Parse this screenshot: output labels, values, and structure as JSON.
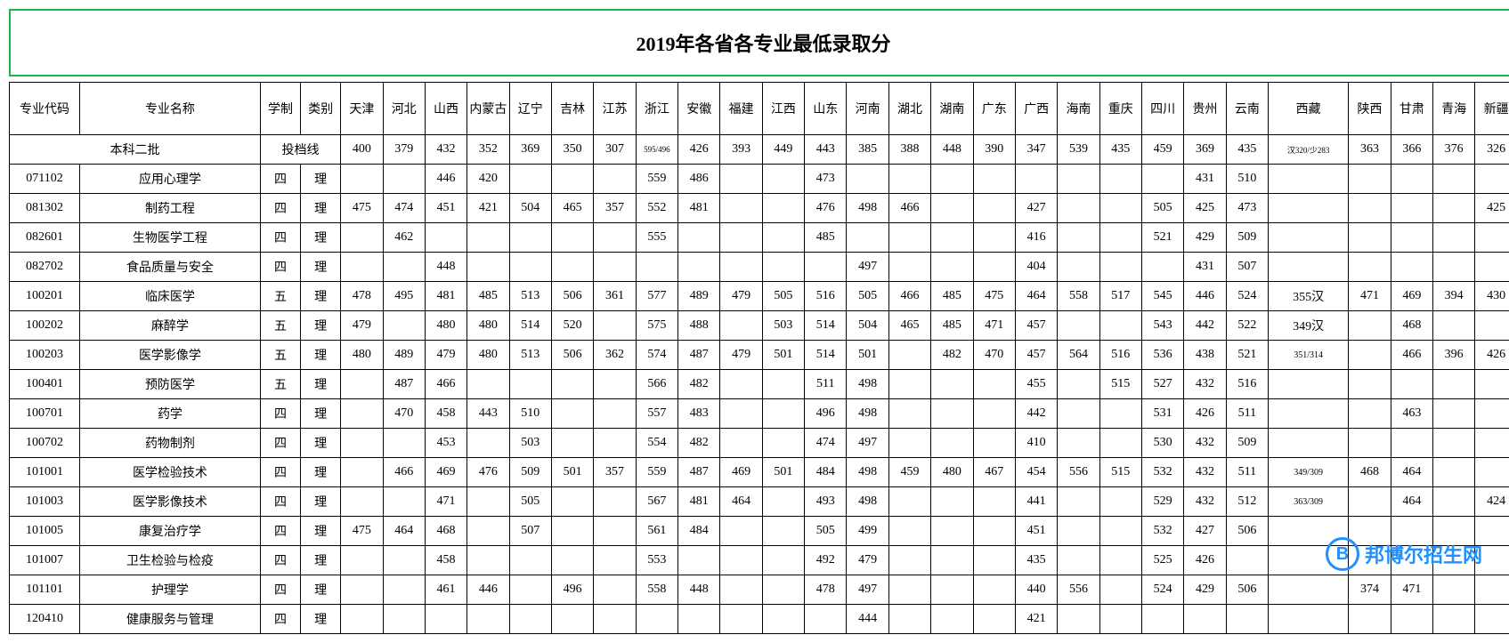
{
  "title": "2019年各省各专业最低录取分",
  "headers": {
    "code": "专业代码",
    "name": "专业名称",
    "duration": "学制",
    "category": "类别",
    "provinces": [
      "天津",
      "河北",
      "山西",
      "内蒙古",
      "辽宁",
      "吉林",
      "江苏",
      "浙江",
      "安徽",
      "福建",
      "江西",
      "山东",
      "河南",
      "湖北",
      "湖南",
      "广东",
      "广西",
      "海南",
      "重庆",
      "四川",
      "贵州",
      "云南",
      "西藏",
      "陕西",
      "甘肃",
      "青海",
      "新疆"
    ]
  },
  "cutoff": {
    "label": "本科二批",
    "sublabel": "投档线",
    "values": [
      "400",
      "379",
      "432",
      "352",
      "369",
      "350",
      "307",
      "595/496",
      "426",
      "393",
      "449",
      "443",
      "385",
      "388",
      "448",
      "390",
      "347",
      "539",
      "435",
      "459",
      "369",
      "435",
      "汉320/少283",
      "363",
      "366",
      "376",
      "326"
    ]
  },
  "rows": [
    {
      "code": "071102",
      "name": "应用心理学",
      "dur": "四",
      "cat": "理",
      "v": [
        "",
        "",
        "446",
        "420",
        "",
        "",
        "",
        "559",
        "486",
        "",
        "",
        "473",
        "",
        "",
        "",
        "",
        "",
        "",
        "",
        "",
        "431",
        "510",
        "",
        "",
        "",
        "",
        ""
      ]
    },
    {
      "code": "081302",
      "name": "制药工程",
      "dur": "四",
      "cat": "理",
      "v": [
        "475",
        "474",
        "451",
        "421",
        "504",
        "465",
        "357",
        "552",
        "481",
        "",
        "",
        "476",
        "498",
        "466",
        "",
        "",
        "427",
        "",
        "",
        "505",
        "425",
        "473",
        "",
        "",
        "",
        "",
        "425"
      ]
    },
    {
      "code": "082601",
      "name": "生物医学工程",
      "dur": "四",
      "cat": "理",
      "v": [
        "",
        "462",
        "",
        "",
        "",
        "",
        "",
        "555",
        "",
        "",
        "",
        "485",
        "",
        "",
        "",
        "",
        "416",
        "",
        "",
        "521",
        "429",
        "509",
        "",
        "",
        "",
        "",
        ""
      ]
    },
    {
      "code": "082702",
      "name": "食品质量与安全",
      "dur": "四",
      "cat": "理",
      "v": [
        "",
        "",
        "448",
        "",
        "",
        "",
        "",
        "",
        "",
        "",
        "",
        "",
        "497",
        "",
        "",
        "",
        "404",
        "",
        "",
        "",
        "431",
        "507",
        "",
        "",
        "",
        "",
        ""
      ]
    },
    {
      "code": "100201",
      "name": "临床医学",
      "dur": "五",
      "cat": "理",
      "v": [
        "478",
        "495",
        "481",
        "485",
        "513",
        "506",
        "361",
        "577",
        "489",
        "479",
        "505",
        "516",
        "505",
        "466",
        "485",
        "475",
        "464",
        "558",
        "517",
        "545",
        "446",
        "524",
        "355汉",
        "471",
        "469",
        "394",
        "430"
      ]
    },
    {
      "code": "100202",
      "name": "麻醉学",
      "dur": "五",
      "cat": "理",
      "v": [
        "479",
        "",
        "480",
        "480",
        "514",
        "520",
        "",
        "575",
        "488",
        "",
        "503",
        "514",
        "504",
        "465",
        "485",
        "471",
        "457",
        "",
        "",
        "543",
        "442",
        "522",
        "349汉",
        "",
        "468",
        "",
        ""
      ]
    },
    {
      "code": "100203",
      "name": "医学影像学",
      "dur": "五",
      "cat": "理",
      "v": [
        "480",
        "489",
        "479",
        "480",
        "513",
        "506",
        "362",
        "574",
        "487",
        "479",
        "501",
        "514",
        "501",
        "",
        "482",
        "470",
        "457",
        "564",
        "516",
        "536",
        "438",
        "521",
        "351/314",
        "",
        "466",
        "396",
        "426"
      ]
    },
    {
      "code": "100401",
      "name": "预防医学",
      "dur": "五",
      "cat": "理",
      "v": [
        "",
        "487",
        "466",
        "",
        "",
        "",
        "",
        "566",
        "482",
        "",
        "",
        "511",
        "498",
        "",
        "",
        "",
        "455",
        "",
        "515",
        "527",
        "432",
        "516",
        "",
        "",
        "",
        "",
        ""
      ]
    },
    {
      "code": "100701",
      "name": "药学",
      "dur": "四",
      "cat": "理",
      "v": [
        "",
        "470",
        "458",
        "443",
        "510",
        "",
        "",
        "557",
        "483",
        "",
        "",
        "496",
        "498",
        "",
        "",
        "",
        "442",
        "",
        "",
        "531",
        "426",
        "511",
        "",
        "",
        "463",
        "",
        ""
      ]
    },
    {
      "code": "100702",
      "name": "药物制剂",
      "dur": "四",
      "cat": "理",
      "v": [
        "",
        "",
        "453",
        "",
        "503",
        "",
        "",
        "554",
        "482",
        "",
        "",
        "474",
        "497",
        "",
        "",
        "",
        "410",
        "",
        "",
        "530",
        "432",
        "509",
        "",
        "",
        "",
        "",
        ""
      ]
    },
    {
      "code": "101001",
      "name": "医学检验技术",
      "dur": "四",
      "cat": "理",
      "v": [
        "",
        "466",
        "469",
        "476",
        "509",
        "501",
        "357",
        "559",
        "487",
        "469",
        "501",
        "484",
        "498",
        "459",
        "480",
        "467",
        "454",
        "556",
        "515",
        "532",
        "432",
        "511",
        "349/309",
        "468",
        "464",
        "",
        ""
      ]
    },
    {
      "code": "101003",
      "name": "医学影像技术",
      "dur": "四",
      "cat": "理",
      "v": [
        "",
        "",
        "471",
        "",
        "505",
        "",
        "",
        "567",
        "481",
        "464",
        "",
        "493",
        "498",
        "",
        "",
        "",
        "441",
        "",
        "",
        "529",
        "432",
        "512",
        "363/309",
        "",
        "464",
        "",
        "424"
      ]
    },
    {
      "code": "101005",
      "name": "康复治疗学",
      "dur": "四",
      "cat": "理",
      "v": [
        "475",
        "464",
        "468",
        "",
        "507",
        "",
        "",
        "561",
        "484",
        "",
        "",
        "505",
        "499",
        "",
        "",
        "",
        "451",
        "",
        "",
        "532",
        "427",
        "506",
        "",
        "",
        "",
        "",
        ""
      ]
    },
    {
      "code": "101007",
      "name": "卫生检验与检疫",
      "dur": "四",
      "cat": "理",
      "v": [
        "",
        "",
        "458",
        "",
        "",
        "",
        "",
        "553",
        "",
        "",
        "",
        "492",
        "479",
        "",
        "",
        "",
        "435",
        "",
        "",
        "525",
        "426",
        "",
        "",
        "",
        "",
        "",
        ""
      ]
    },
    {
      "code": "101101",
      "name": "护理学",
      "dur": "四",
      "cat": "理",
      "v": [
        "",
        "",
        "461",
        "446",
        "",
        "496",
        "",
        "558",
        "448",
        "",
        "",
        "478",
        "497",
        "",
        "",
        "",
        "440",
        "556",
        "",
        "524",
        "429",
        "506",
        "",
        "374",
        "471",
        "",
        ""
      ]
    },
    {
      "code": "120410",
      "name": "健康服务与管理",
      "dur": "四",
      "cat": "理",
      "v": [
        "",
        "",
        "",
        "",
        "",
        "",
        "",
        "",
        "",
        "",
        "",
        "",
        "444",
        "",
        "",
        "",
        "421",
        "",
        "",
        "",
        "",
        "",
        "",
        "",
        "",
        "",
        ""
      ]
    }
  ],
  "watermark": {
    "logo": "B",
    "text": "邦博尔招生网"
  },
  "style": {
    "border_color": "#22b14c",
    "title_fontsize": 22,
    "cell_fontsize": 14,
    "watermark_color": "#1e90ff"
  }
}
